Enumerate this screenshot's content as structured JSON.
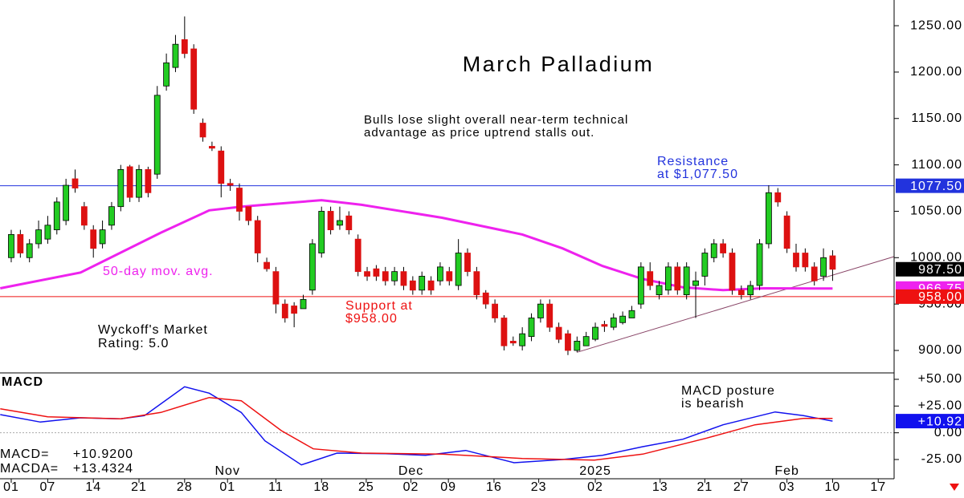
{
  "chart_data": [
    {
      "type": "candlestick",
      "title": "March Palladium",
      "subtitle": [
        "Bulls lose slight overall near-term technical",
        "advantage as price uptrend stalls out."
      ],
      "annotation": [
        "Wyckoff's Market",
        "Rating: 5.0"
      ],
      "color_up": "#22cc22",
      "color_down": "#dd1111",
      "xlim": [
        -1.23,
        96.74
      ],
      "ylim": [
        875.8,
        1277.7
      ],
      "yticks": [
        {
          "value": 900,
          "label": "900.00"
        },
        {
          "value": 950,
          "label": "950.00"
        },
        {
          "value": 1000,
          "label": "1000.00"
        },
        {
          "value": 1050,
          "label": "1050.00"
        },
        {
          "value": 1100,
          "label": "1100.00"
        },
        {
          "value": 1150,
          "label": "1150.00"
        },
        {
          "value": 1200,
          "label": "1200.00"
        },
        {
          "value": 1250,
          "label": "1250.00"
        }
      ],
      "open": [
        1000,
        1025,
        1000,
        1015,
        1020,
        1030,
        1040,
        1085,
        1055,
        1030,
        1015,
        1035,
        1055,
        1098,
        1065,
        1095,
        1090,
        1185,
        1205,
        1235,
        1225,
        1145,
        1120,
        1115,
        1080,
        1075,
        1055,
        1040,
        995,
        985,
        950,
        948,
        945,
        965,
        1005,
        1050,
        1035,
        1045,
        1020,
        985,
        988,
        985,
        975,
        985,
        975,
        965,
        975,
        975,
        985,
        970,
        1005,
        985,
        962,
        950,
        935,
        910,
        905,
        915,
        935,
        950,
        925,
        918,
        900,
        905,
        912,
        928,
        925,
        930,
        935,
        950,
        985,
        960,
        965,
        990,
        960,
        970,
        980,
        1000,
        1015,
        1005,
        965,
        960,
        970,
        1015,
        1070,
        1045,
        1005,
        1005,
        990,
        980,
        1002
      ],
      "high": [
        1030,
        1030,
        1020,
        1040,
        1045,
        1065,
        1085,
        1095,
        1060,
        1035,
        1040,
        1060,
        1100,
        1100,
        1100,
        1098,
        1185,
        1220,
        1240,
        1260,
        1230,
        1150,
        1125,
        1120,
        1085,
        1080,
        1055,
        1045,
        1000,
        990,
        955,
        952,
        960,
        1020,
        1055,
        1055,
        1055,
        1050,
        1025,
        990,
        992,
        990,
        990,
        990,
        980,
        985,
        980,
        995,
        990,
        1020,
        1010,
        990,
        965,
        955,
        938,
        915,
        925,
        940,
        955,
        955,
        930,
        922,
        915,
        920,
        930,
        932,
        940,
        942,
        948,
        995,
        995,
        975,
        995,
        995,
        995,
        985,
        1010,
        1020,
        1020,
        1010,
        970,
        975,
        1020,
        1078,
        1075,
        1050,
        1015,
        1010,
        995,
        1010,
        1008
      ],
      "low": [
        995,
        1000,
        995,
        1010,
        1015,
        1025,
        1035,
        1070,
        1030,
        1000,
        1010,
        1030,
        1050,
        1060,
        1060,
        1065,
        1085,
        1180,
        1200,
        1215,
        1155,
        1125,
        1115,
        1065,
        1072,
        1040,
        1035,
        995,
        985,
        940,
        930,
        925,
        945,
        960,
        1000,
        1025,
        1030,
        1025,
        980,
        975,
        975,
        970,
        970,
        965,
        960,
        960,
        960,
        970,
        970,
        965,
        980,
        955,
        945,
        930,
        900,
        905,
        900,
        910,
        930,
        920,
        908,
        895,
        898,
        905,
        910,
        920,
        922,
        928,
        935,
        945,
        965,
        955,
        960,
        960,
        955,
        935,
        970,
        995,
        1000,
        960,
        955,
        955,
        965,
        1010,
        1055,
        1005,
        985,
        985,
        970,
        975,
        975
      ],
      "close": [
        1025,
        1005,
        1015,
        1030,
        1035,
        1060,
        1078,
        1075,
        1035,
        1010,
        1030,
        1055,
        1095,
        1065,
        1095,
        1070,
        1175,
        1210,
        1230,
        1220,
        1160,
        1130,
        1118,
        1080,
        1078,
        1050,
        1040,
        1005,
        988,
        950,
        935,
        940,
        955,
        1015,
        1050,
        1030,
        1040,
        1030,
        985,
        980,
        980,
        975,
        985,
        970,
        965,
        980,
        965,
        990,
        975,
        1005,
        985,
        960,
        950,
        935,
        905,
        908,
        918,
        935,
        950,
        925,
        912,
        900,
        910,
        915,
        925,
        926,
        935,
        937,
        943,
        990,
        970,
        970,
        990,
        965,
        990,
        975,
        1005,
        1015,
        1005,
        965,
        960,
        970,
        1015,
        1070,
        1060,
        1010,
        990,
        990,
        975,
        1000,
        987.5
      ],
      "last": {
        "value": 987.5,
        "label": "987.50"
      },
      "moving_average": {
        "name": "50-day mov. avg.",
        "color": "#ee22ee",
        "x": [
          -1.2,
          7.6,
          16.4,
          21.7,
          25.2,
          34,
          38.4,
          47.2,
          56,
          60.4,
          64.8,
          69.2,
          73.6,
          78,
          82.4,
          90
        ],
        "values": [
          967,
          984,
          1027,
          1051,
          1055,
          1062,
          1057,
          1043,
          1025,
          1010,
          991,
          977,
          968,
          965,
          967,
          966.75
        ],
        "last_label": "966.75"
      },
      "levels": [
        {
          "name": [
            "Resistance",
            "at $1,077.50"
          ],
          "value": 1077.5,
          "label": "1077.50",
          "color": "#2233dd"
        },
        {
          "name": [
            "Support at",
            "$958.00"
          ],
          "value": 958,
          "label": "958.00",
          "color": "#ee1111"
        }
      ],
      "trendline": {
        "x": [
          62,
          96.7
        ],
        "values": [
          898,
          1001
        ],
        "color": "#884466"
      }
    },
    {
      "type": "line",
      "title": "MACD",
      "annotation": [
        "MACD posture",
        "is bearish"
      ],
      "xlim": [
        -1.23,
        96.74
      ],
      "ylim": [
        -43,
        56
      ],
      "yticks": [
        {
          "value": -25,
          "label": "-25.00"
        },
        {
          "value": 0,
          "label": "0.00"
        },
        {
          "value": 25,
          "label": "+25.00"
        },
        {
          "value": 50,
          "label": "+50.00"
        }
      ],
      "series": [
        {
          "name": "MACD=",
          "color": "#1111ee",
          "readout": "+10.9200",
          "last_label": "+10.92",
          "x": [
            -1.2,
            3.2,
            7.6,
            12,
            14.6,
            19,
            21.7,
            25.2,
            27.8,
            31.8,
            35.7,
            41,
            45.4,
            49.8,
            55.1,
            60.4,
            64.8,
            69.2,
            73.6,
            78,
            83.7,
            86.8,
            90
          ],
          "values": [
            17,
            10,
            14,
            13,
            16,
            43,
            37,
            19,
            -7.5,
            -30,
            -19,
            -19.5,
            -21,
            -16.5,
            -28,
            -25,
            -21,
            -13,
            -6,
            7.5,
            19.5,
            16,
            10.92
          ]
        },
        {
          "name": "MACDA=",
          "color": "#ee1111",
          "readout": "+13.4324",
          "x": [
            -1.2,
            4,
            12,
            16.4,
            21.7,
            25.2,
            29.6,
            33.1,
            38.4,
            47.2,
            56,
            63.9,
            69.2,
            76.2,
            81.5,
            86.8,
            90
          ],
          "values": [
            22.5,
            15,
            13,
            19,
            33,
            30,
            2,
            -15,
            -19,
            -20,
            -24,
            -25.5,
            -20,
            -5,
            7.5,
            13.5,
            13.4324
          ]
        }
      ],
      "xticks": [
        {
          "value": 0,
          "label": "01"
        },
        {
          "value": 4,
          "label": "07"
        },
        {
          "value": 9,
          "label": "14"
        },
        {
          "value": 14,
          "label": "21"
        },
        {
          "value": 19,
          "label": "28"
        },
        {
          "value": 23.7,
          "label": "01"
        },
        {
          "value": 29,
          "label": "11"
        },
        {
          "value": 34,
          "label": "18"
        },
        {
          "value": 38.9,
          "label": "25"
        },
        {
          "value": 43.8,
          "label": "02"
        },
        {
          "value": 47.9,
          "label": "09"
        },
        {
          "value": 52.9,
          "label": "16"
        },
        {
          "value": 57.8,
          "label": "23"
        },
        {
          "value": 64,
          "label": "02"
        },
        {
          "value": 71.1,
          "label": "13"
        },
        {
          "value": 76,
          "label": "21"
        },
        {
          "value": 80,
          "label": "27"
        },
        {
          "value": 85,
          "label": "03"
        },
        {
          "value": 90,
          "label": "10"
        },
        {
          "value": 95,
          "label": "17"
        }
      ],
      "months": [
        {
          "value": 23.7,
          "label": "Nov"
        },
        {
          "value": 43.8,
          "label": "Dec"
        },
        {
          "value": 64,
          "label": "2025"
        },
        {
          "value": 85,
          "label": "Feb"
        }
      ]
    }
  ]
}
